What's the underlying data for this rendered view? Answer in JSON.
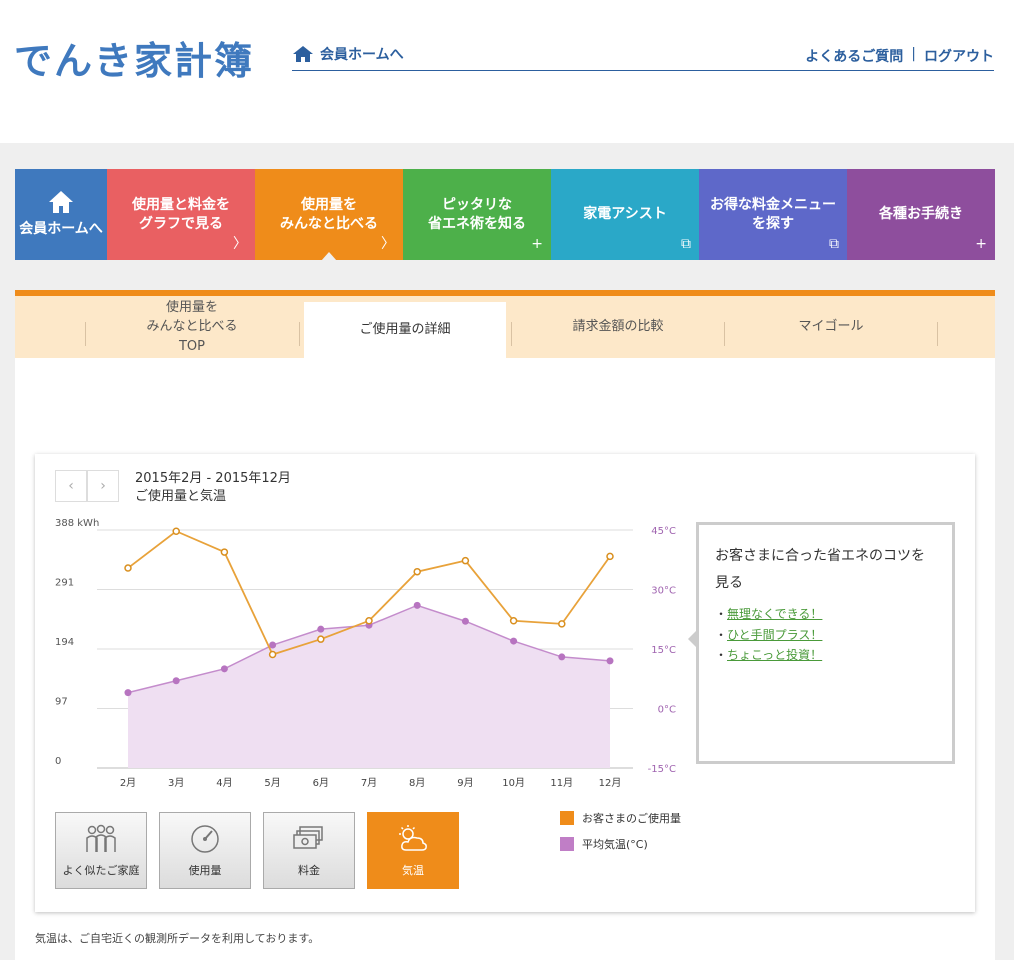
{
  "header": {
    "logo": "でんき家計簿",
    "home_link": "会員ホームへ",
    "faq": "よくあるご質問",
    "sep": "|",
    "logout": "ログアウト"
  },
  "mainnav": {
    "home": "会員ホームへ",
    "items": [
      {
        "label": "使用量と料金を\nグラフで見る",
        "mark": "〉"
      },
      {
        "label": "使用量を\nみんなと比べる",
        "mark": "〉"
      },
      {
        "label": "ピッタリな\n省エネ術を知る",
        "mark": "+"
      },
      {
        "label": "家電アシスト",
        "mark": "⧉"
      },
      {
        "label": "お得な料金メニュー\nを探す",
        "mark": "⧉"
      },
      {
        "label": "各種お手続き",
        "mark": "+"
      }
    ]
  },
  "subnav": {
    "tabs": [
      {
        "label": "使用量を\nみんなと比べる\nTOP"
      },
      {
        "label": "ご使用量の詳細"
      },
      {
        "label": "請求金額の比較"
      },
      {
        "label": "マイゴール"
      }
    ]
  },
  "pager": {
    "prev": "‹",
    "next": "›"
  },
  "period": {
    "range": "2015年2月 - 2015年12月",
    "subtitle": "ご使用量と気温"
  },
  "chart_data": {
    "type": "line",
    "x": [
      "2月",
      "3月",
      "4月",
      "5月",
      "6月",
      "7月",
      "8月",
      "9月",
      "10月",
      "11月",
      "12月"
    ],
    "y_left": {
      "unit": "kWh",
      "ticks": [
        "388 kWh",
        "291",
        "194",
        "97",
        "0"
      ],
      "range": [
        0,
        388
      ]
    },
    "y_right": {
      "unit": "°C",
      "ticks": [
        "45°C",
        "30°C",
        "15°C",
        "0°C",
        "-15°C"
      ],
      "range": [
        -15,
        45
      ]
    },
    "series": [
      {
        "name": "お客さまのご使用量",
        "color": "#e8a23a",
        "axis": "left",
        "values": [
          326,
          386,
          352,
          185,
          210,
          240,
          320,
          338,
          240,
          235,
          345
        ]
      },
      {
        "name": "平均気温(°C)",
        "color": "#b77ac0",
        "axis": "right",
        "values": [
          4,
          7,
          10,
          16,
          20,
          21,
          26,
          22,
          17,
          13,
          12
        ]
      }
    ],
    "grid": true
  },
  "tips": {
    "title": "お客さまに合った省エネのコツを見る",
    "bullet": "・",
    "items": [
      "無理なくできる！",
      "ひと手間プラス！",
      "ちょこっと投資！"
    ]
  },
  "buttons": [
    {
      "label": "よく似たご家庭",
      "icon": "family-icon"
    },
    {
      "label": "使用量",
      "icon": "meter-icon"
    },
    {
      "label": "料金",
      "icon": "money-icon"
    },
    {
      "label": "気温",
      "icon": "weather-icon"
    }
  ],
  "legend": [
    "お客さまのご使用量",
    "平均気温(°C)"
  ],
  "footnote": "気温は、ご自宅近くの観測所データを利用しております。"
}
